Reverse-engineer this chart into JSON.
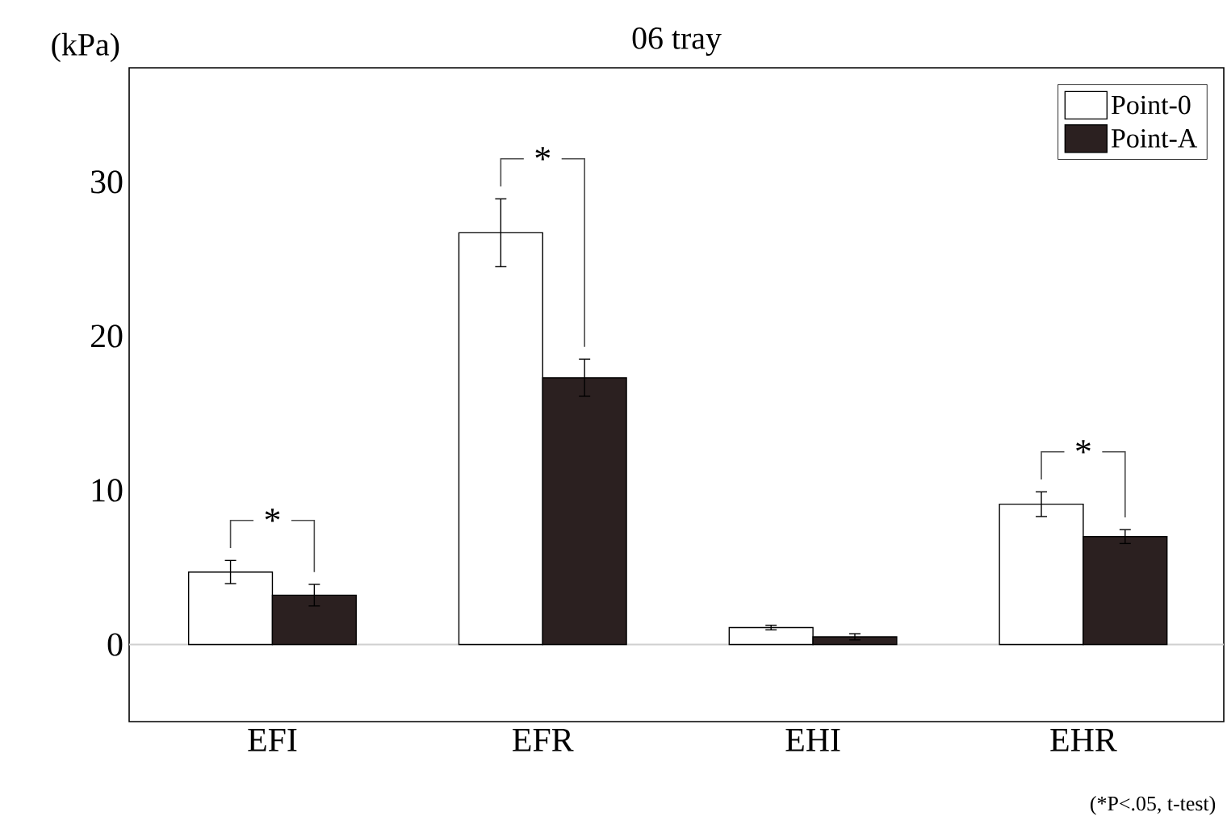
{
  "chart_data": {
    "type": "bar",
    "title": "06 tray",
    "ylabel": "(kPa)",
    "categories": [
      "EFI",
      "EFR",
      "EHI",
      "EHR"
    ],
    "series": [
      {
        "name": "Point-0",
        "color": "#ffffff",
        "values": [
          4.7,
          26.7,
          1.1,
          9.1
        ],
        "errors": [
          0.75,
          2.2,
          0.15,
          0.8
        ]
      },
      {
        "name": "Point-A",
        "color": "#2b2020",
        "values": [
          3.2,
          17.3,
          0.5,
          7.0
        ],
        "errors": [
          0.7,
          1.2,
          0.2,
          0.45
        ]
      }
    ],
    "ylim": [
      -5,
      37.4
    ],
    "yticks": [
      0,
      10,
      20,
      30
    ],
    "ref_lines": [
      {
        "axis": "y",
        "value": 0,
        "color": "#d0d0d0"
      }
    ],
    "annotations": [
      "*",
      "*",
      "*",
      "(*P<.05, t-test)"
    ],
    "legend": "top right",
    "grid": false
  }
}
